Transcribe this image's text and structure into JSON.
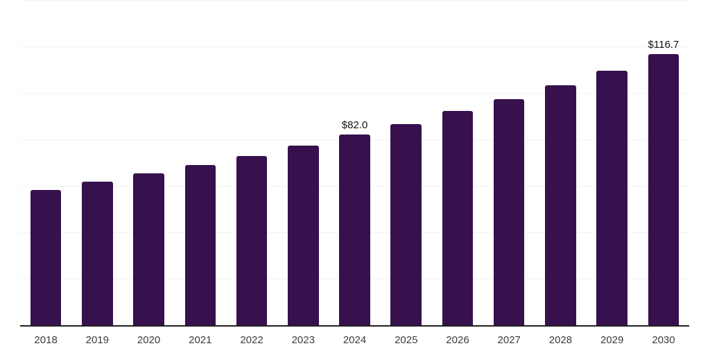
{
  "chart_data": {
    "type": "bar",
    "title": "",
    "xlabel": "",
    "ylabel": "",
    "categories": [
      "2018",
      "2019",
      "2020",
      "2021",
      "2022",
      "2023",
      "2024",
      "2025",
      "2026",
      "2027",
      "2028",
      "2029",
      "2030"
    ],
    "values": [
      58.1,
      61.7,
      65.4,
      69.0,
      72.9,
      77.3,
      82.0,
      86.7,
      92.1,
      97.4,
      103.3,
      109.6,
      116.7
    ],
    "data_labels": {
      "2024": "$82.0",
      "2030": "$116.7"
    },
    "ylim": [
      0,
      140
    ],
    "gridline_step": 20,
    "grid": "horizontal",
    "legend": "none",
    "colors": {
      "bar": "#36114D",
      "gridline": "#f2f2f2",
      "axis_line": "#1f1f1f",
      "tick_label": "#3c3c3c",
      "value_label": "#111111",
      "background": "#ffffff"
    }
  }
}
